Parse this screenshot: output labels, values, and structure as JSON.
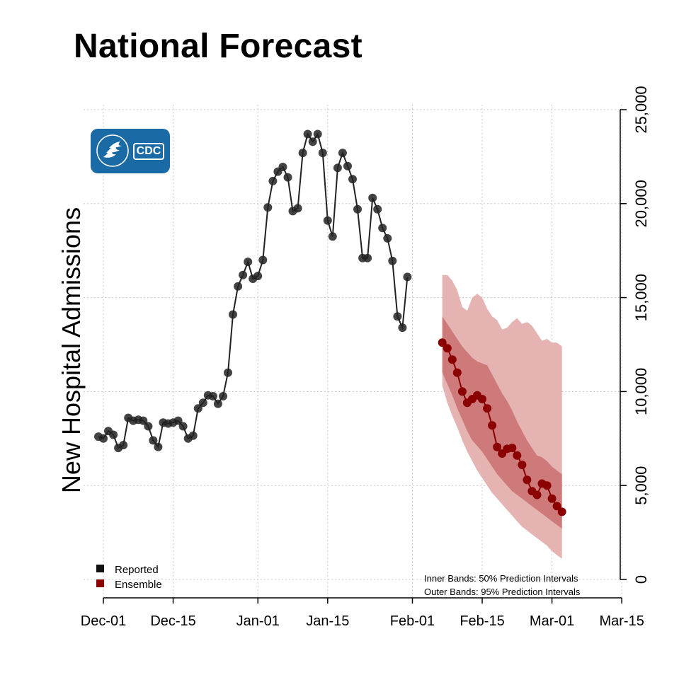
{
  "title": "National Forecast",
  "logo": {
    "name": "cdc-logo-icon",
    "text": "CDC",
    "color": "#1a6aa5"
  },
  "chart_data": {
    "type": "line",
    "title": "National Forecast",
    "xlabel": "",
    "ylabel": "New Hospital Admissions",
    "xlim": [
      "2021-11-30",
      "2022-03-15"
    ],
    "ylim": [
      0,
      25000
    ],
    "x_ticks": [
      "Dec-01",
      "Dec-15",
      "Jan-01",
      "Jan-15",
      "Feb-01",
      "Feb-15",
      "Mar-01",
      "Mar-15"
    ],
    "x_tick_dates": [
      "2021-12-01",
      "2021-12-15",
      "2022-01-01",
      "2022-01-15",
      "2022-02-01",
      "2022-02-15",
      "2022-03-01",
      "2022-03-15"
    ],
    "y_ticks": [
      0,
      5000,
      10000,
      15000,
      20000,
      25000
    ],
    "y_tick_labels": [
      "0",
      "5,000",
      "10,000",
      "15,000",
      "20,000",
      "25,000"
    ],
    "y_axis_position": "right",
    "grid": true,
    "legend_position": "bottom-left",
    "legend": [
      {
        "label": "Reported",
        "color": "#111111"
      },
      {
        "label": "Ensemble",
        "color": "#8b0000"
      }
    ],
    "annotations": [
      "Inner Bands: 50% Prediction Intervals",
      "Outer Bands: 95% Prediction Intervals"
    ],
    "series": [
      {
        "name": "Reported",
        "color": "#222222",
        "start_date": "2021-11-30",
        "values": [
          7600,
          7500,
          7900,
          7700,
          7000,
          7150,
          8600,
          8450,
          8500,
          8450,
          8150,
          7400,
          7050,
          8350,
          8300,
          8350,
          8450,
          8150,
          7500,
          7650,
          9100,
          9400,
          9800,
          9750,
          9350,
          9750,
          11000,
          14100,
          15600,
          16200,
          16900,
          16000,
          16150,
          17000,
          19800,
          21200,
          21700,
          21950,
          21400,
          19600,
          19750,
          22700,
          23700,
          23300,
          23700,
          22700,
          19100,
          18250,
          21900,
          22700,
          22000,
          21300,
          19700,
          17100,
          17100,
          20300,
          19700,
          18700,
          18150,
          16950,
          14000,
          13400,
          16100
        ]
      },
      {
        "name": "Ensemble",
        "color": "#8b0000",
        "start_date": "2022-02-07",
        "values": [
          12600,
          12300,
          11700,
          11000,
          10000,
          9400,
          9600,
          9800,
          9600,
          9100,
          8200,
          7050,
          6700,
          6950,
          7000,
          6600,
          6100,
          5300,
          4700,
          4500,
          5100,
          5000,
          4300,
          3900,
          3600
        ],
        "inner_band_lower": [
          11000,
          10400,
          9800,
          9100,
          8500,
          7900,
          7400,
          7100,
          6800,
          6400,
          6000,
          5600,
          5300,
          5000,
          4700,
          4500,
          4300,
          4100,
          3900,
          3700,
          3500,
          3300,
          3100,
          2900,
          2700
        ],
        "inner_band_upper": [
          14000,
          13600,
          13200,
          12800,
          12400,
          12100,
          11800,
          11600,
          11500,
          11400,
          10900,
          10400,
          9900,
          9500,
          9000,
          8400,
          7900,
          7400,
          7000,
          6600,
          6500,
          6300,
          6000,
          5800,
          5600
        ],
        "outer_band_lower": [
          10300,
          9400,
          8700,
          8100,
          7400,
          6800,
          6300,
          5800,
          5400,
          5000,
          4600,
          4300,
          4000,
          3700,
          3400,
          3100,
          2800,
          2600,
          2400,
          2200,
          2000,
          1800,
          1500,
          1300,
          1100
        ],
        "outer_band_upper": [
          16200,
          16200,
          15900,
          15400,
          14500,
          14300,
          15000,
          15200,
          15000,
          14400,
          14000,
          13800,
          13300,
          13400,
          13700,
          13900,
          13600,
          13700,
          13500,
          13100,
          12700,
          12800,
          12600,
          12600,
          12400
        ]
      }
    ]
  }
}
